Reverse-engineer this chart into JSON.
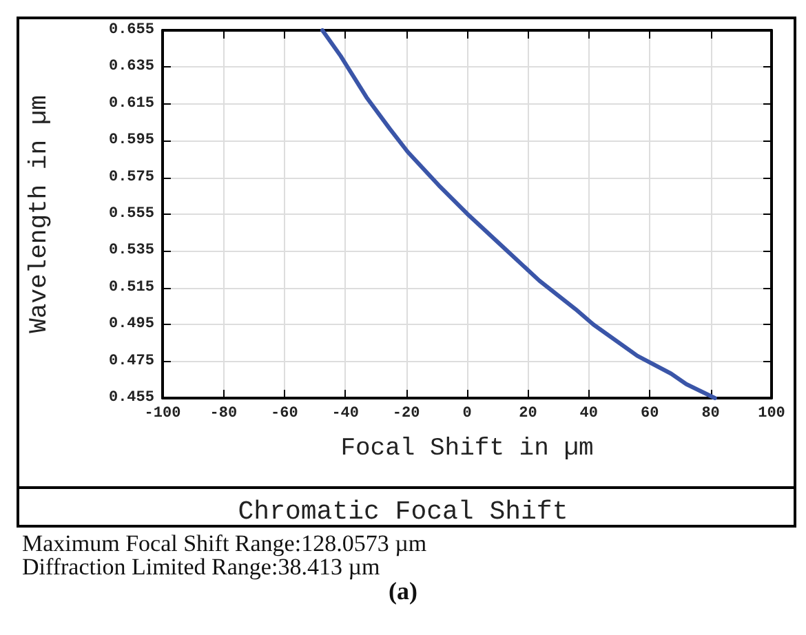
{
  "chart_data": {
    "type": "line",
    "title": "Chromatic Focal Shift",
    "xlabel": "Focal Shift in µm",
    "ylabel": "Wavelength in µm",
    "annotations": [
      "Maximum Focal Shift Range:128.0573 µm",
      "Diffraction Limited Range:38.413 µm",
      "(a)"
    ],
    "series": [
      {
        "color": "#3a55a8",
        "x": [
          -47.5,
          -41.5,
          -33,
          -25.4,
          -19.5,
          -9.3,
          0,
          11.9,
          23.7,
          35.6,
          41.5,
          55.9,
          67,
          72,
          81.4
        ],
        "values": [
          0.655,
          0.641,
          0.6185,
          0.6015,
          0.5889,
          0.5707,
          0.5553,
          0.537,
          0.5189,
          0.5034,
          0.495,
          0.478,
          0.4683,
          0.4626,
          0.455
        ]
      }
    ],
    "xlim": [
      -100,
      100
    ],
    "xticks": [
      -100,
      -80,
      -60,
      -40,
      -20,
      0,
      20,
      40,
      60,
      80,
      100
    ],
    "ylim": [
      0.455,
      0.655
    ],
    "yticks": [
      0.455,
      0.475,
      0.495,
      0.515,
      0.535,
      0.555,
      0.575,
      0.595,
      0.615,
      0.635,
      0.655
    ],
    "grid": true,
    "marker": "none",
    "line_style": "solid"
  }
}
